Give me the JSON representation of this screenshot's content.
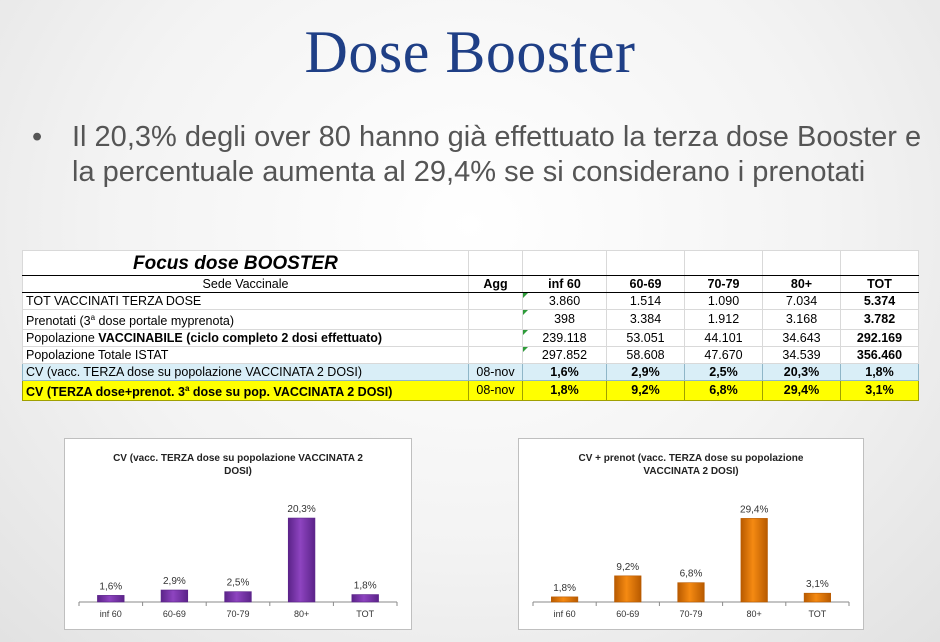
{
  "slide": {
    "title": "Dose Booster",
    "bullet_marker": "•",
    "bullet_text": "Il 20,3% degli over 80 hanno già effettuato la terza dose Booster e la percentuale aumenta al 29,4% se si considerano i prenotati"
  },
  "table": {
    "title": "Focus dose BOOSTER",
    "headers": [
      "Sede Vaccinale",
      "Agg",
      "inf 60",
      "60-69",
      "70-79",
      "80+",
      "TOT"
    ],
    "rows": [
      {
        "label": "TOT VACCINATI TERZA DOSE",
        "agg": "",
        "values": [
          "3.860",
          "1.514",
          "1.090",
          "7.034",
          "5.374"
        ]
      },
      {
        "label_pre": "Prenotati (3",
        "label_sup": "a",
        "label_post": " dose portale myprenota)",
        "agg": "",
        "values": [
          "398",
          "3.384",
          "1.912",
          "3.168",
          "3.782"
        ]
      },
      {
        "label_pre": "Popolazione ",
        "label_bold": "VACCINABILE (ciclo completo 2 dosi effettuato)",
        "agg": "",
        "values": [
          "239.118",
          "53.051",
          "44.101",
          "34.643",
          "292.169"
        ]
      },
      {
        "label": "Popolazione Totale ISTAT",
        "agg": "",
        "values": [
          "297.852",
          "58.608",
          "47.670",
          "34.539",
          "356.460"
        ]
      },
      {
        "label": "CV (vacc. TERZA dose su popolazione VACCINATA 2 DOSI)",
        "agg": "08-nov",
        "values": [
          "1,6%",
          "2,9%",
          "2,5%",
          "20,3%",
          "1,8%"
        ]
      },
      {
        "label_pre": "CV (TERZA dose+prenot. 3",
        "label_sup": "a",
        "label_post": " dose su pop. VACCINATA 2 DOSI)",
        "agg": "08-nov",
        "values": [
          "1,8%",
          "9,2%",
          "6,8%",
          "29,4%",
          "3,1%"
        ]
      }
    ]
  },
  "colors": {
    "title": "#1f3f86",
    "chart1_bar": "#8e44c0",
    "chart1_bar_dark": "#5b2389",
    "chart2_bar": "#f58a12",
    "chart2_bar_dark": "#b85a00"
  },
  "chart_data": [
    {
      "type": "bar",
      "title": "CV (vacc. TERZA dose su popolazione VACCINATA 2 DOSI)",
      "title_lines": [
        "CV (vacc. TERZA dose su popolazione VACCINATA 2",
        "DOSI)"
      ],
      "categories": [
        "inf 60",
        "60-69",
        "70-79",
        "80+",
        "TOT"
      ],
      "values": [
        1.6,
        2.9,
        2.5,
        20.3,
        1.8
      ],
      "value_labels": [
        "1,6%",
        "2,9%",
        "2,5%",
        "20,3%",
        "1,8%"
      ],
      "ylim": [
        0,
        22
      ]
    },
    {
      "type": "bar",
      "title": "CV + prenot (vacc. TERZA dose su popolazione VACCINATA 2 DOSI)",
      "title_lines": [
        "CV + prenot  (vacc. TERZA dose su popolazione",
        "VACCINATA 2 DOSI)"
      ],
      "categories": [
        "inf 60",
        "60-69",
        "70-79",
        "80+",
        "TOT"
      ],
      "values": [
        1.8,
        9.2,
        6.8,
        29.4,
        3.1
      ],
      "value_labels": [
        "1,8%",
        "9,2%",
        "6,8%",
        "29,4%",
        "3,1%"
      ],
      "ylim": [
        0,
        32
      ]
    }
  ]
}
